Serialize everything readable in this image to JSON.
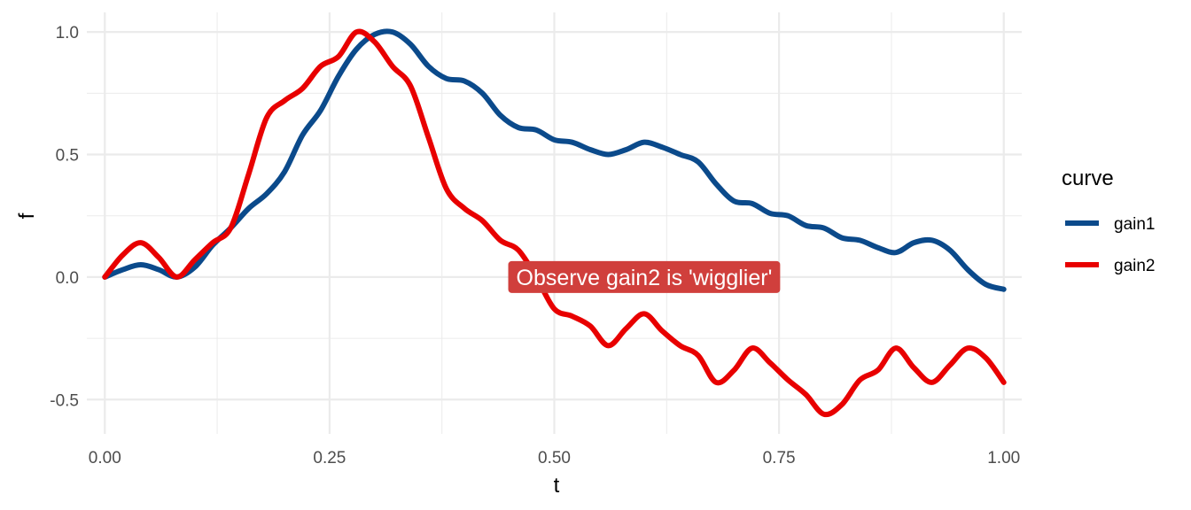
{
  "chart_data": {
    "type": "line",
    "xlabel": "t",
    "ylabel": "f",
    "xlim": [
      -0.02,
      1.02
    ],
    "ylim": [
      -0.64,
      1.08
    ],
    "x_ticks": [
      "0.00",
      "0.25",
      "0.50",
      "0.75",
      "1.00"
    ],
    "y_ticks": [
      "1.0",
      "0.5",
      "0.0",
      "-0.5"
    ],
    "grid": true,
    "legend": {
      "title": "curve",
      "position": "right"
    },
    "series": [
      {
        "name": "gain1",
        "color": "#0b4a8b",
        "x": [
          0.0,
          0.02,
          0.04,
          0.06,
          0.08,
          0.1,
          0.12,
          0.14,
          0.16,
          0.18,
          0.2,
          0.22,
          0.24,
          0.26,
          0.28,
          0.3,
          0.32,
          0.34,
          0.36,
          0.38,
          0.4,
          0.42,
          0.44,
          0.46,
          0.48,
          0.5,
          0.52,
          0.54,
          0.56,
          0.58,
          0.6,
          0.62,
          0.64,
          0.66,
          0.68,
          0.7,
          0.72,
          0.74,
          0.76,
          0.78,
          0.8,
          0.82,
          0.84,
          0.86,
          0.88,
          0.9,
          0.92,
          0.94,
          0.96,
          0.98,
          1.0
        ],
        "y": [
          0.0,
          0.03,
          0.05,
          0.03,
          0.0,
          0.04,
          0.13,
          0.2,
          0.28,
          0.34,
          0.43,
          0.58,
          0.68,
          0.82,
          0.93,
          0.99,
          1.0,
          0.95,
          0.86,
          0.81,
          0.8,
          0.75,
          0.66,
          0.61,
          0.6,
          0.56,
          0.55,
          0.52,
          0.5,
          0.52,
          0.55,
          0.53,
          0.5,
          0.47,
          0.38,
          0.31,
          0.3,
          0.26,
          0.25,
          0.21,
          0.2,
          0.16,
          0.15,
          0.12,
          0.1,
          0.14,
          0.15,
          0.11,
          0.03,
          -0.03,
          -0.05
        ]
      },
      {
        "name": "gain2",
        "color": "#e80000",
        "x": [
          0.0,
          0.02,
          0.04,
          0.06,
          0.08,
          0.1,
          0.12,
          0.14,
          0.16,
          0.18,
          0.2,
          0.22,
          0.24,
          0.26,
          0.28,
          0.3,
          0.32,
          0.34,
          0.36,
          0.38,
          0.4,
          0.42,
          0.44,
          0.46,
          0.48,
          0.5,
          0.52,
          0.54,
          0.56,
          0.58,
          0.6,
          0.62,
          0.64,
          0.66,
          0.68,
          0.7,
          0.72,
          0.74,
          0.76,
          0.78,
          0.8,
          0.82,
          0.84,
          0.86,
          0.88,
          0.9,
          0.92,
          0.94,
          0.96,
          0.98,
          1.0
        ],
        "y": [
          0.0,
          0.09,
          0.14,
          0.08,
          0.0,
          0.07,
          0.14,
          0.2,
          0.42,
          0.65,
          0.72,
          0.77,
          0.86,
          0.9,
          1.0,
          0.96,
          0.86,
          0.78,
          0.57,
          0.36,
          0.28,
          0.23,
          0.15,
          0.11,
          0.0,
          -0.13,
          -0.16,
          -0.2,
          -0.28,
          -0.21,
          -0.15,
          -0.22,
          -0.28,
          -0.32,
          -0.43,
          -0.38,
          -0.29,
          -0.35,
          -0.42,
          -0.48,
          -0.56,
          -0.52,
          -0.42,
          -0.38,
          -0.29,
          -0.37,
          -0.43,
          -0.36,
          -0.29,
          -0.33,
          -0.43
        ]
      }
    ],
    "annotations": [
      {
        "text": "Observe gain2 is 'wigglier'",
        "x": 0.6,
        "y": 0.0,
        "fill": "#d03f3c",
        "text_color": "#ffffff"
      }
    ]
  }
}
